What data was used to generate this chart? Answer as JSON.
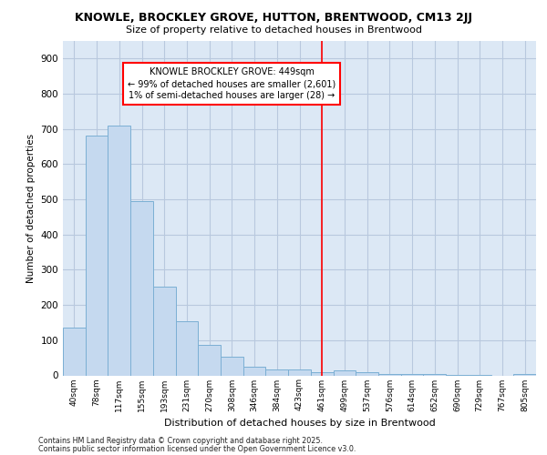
{
  "title1": "KNOWLE, BROCKLEY GROVE, HUTTON, BRENTWOOD, CM13 2JJ",
  "title2": "Size of property relative to detached houses in Brentwood",
  "xlabel": "Distribution of detached houses by size in Brentwood",
  "ylabel": "Number of detached properties",
  "categories": [
    "40sqm",
    "78sqm",
    "117sqm",
    "155sqm",
    "193sqm",
    "231sqm",
    "270sqm",
    "308sqm",
    "346sqm",
    "384sqm",
    "423sqm",
    "461sqm",
    "499sqm",
    "537sqm",
    "576sqm",
    "614sqm",
    "652sqm",
    "690sqm",
    "729sqm",
    "767sqm",
    "805sqm"
  ],
  "values": [
    135,
    680,
    710,
    495,
    252,
    155,
    87,
    52,
    25,
    18,
    18,
    10,
    13,
    8,
    5,
    3,
    3,
    2,
    1,
    0,
    3
  ],
  "bar_color": "#c5d9ef",
  "bar_edge_color": "#7bafd4",
  "grid_color": "#b8c8de",
  "background_color": "#dce8f5",
  "red_line_index": 11,
  "annotation_text": "KNOWLE BROCKLEY GROVE: 449sqm\n← 99% of detached houses are smaller (2,601)\n1% of semi-detached houses are larger (28) →",
  "ylim": [
    0,
    950
  ],
  "yticks": [
    0,
    100,
    200,
    300,
    400,
    500,
    600,
    700,
    800,
    900
  ],
  "footnote1": "Contains HM Land Registry data © Crown copyright and database right 2025.",
  "footnote2": "Contains public sector information licensed under the Open Government Licence v3.0."
}
